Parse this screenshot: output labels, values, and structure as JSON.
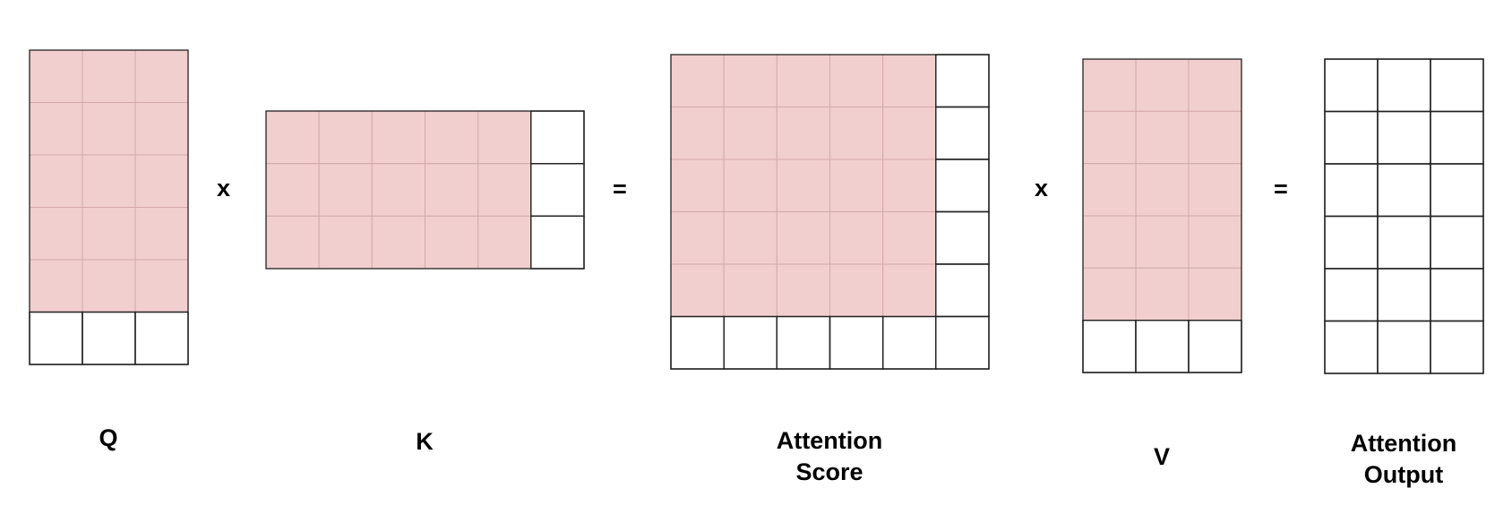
{
  "colors": {
    "shaded": "#f2cfcf",
    "inner_line": "#d2a9a9",
    "border": "#222222",
    "background": "#ffffff"
  },
  "matrices": [
    {
      "id": "q",
      "label": "Q",
      "rows": 6,
      "cols": 3,
      "shaded_rows": 5,
      "shaded_cols": 3
    },
    {
      "id": "k",
      "label": "K",
      "rows": 3,
      "cols": 6,
      "shaded_rows": 3,
      "shaded_cols": 5
    },
    {
      "id": "attention-score",
      "label": "Attention\nScore",
      "rows": 6,
      "cols": 6,
      "shaded_rows": 5,
      "shaded_cols": 5
    },
    {
      "id": "v",
      "label": "V",
      "rows": 6,
      "cols": 3,
      "shaded_rows": 5,
      "shaded_cols": 3
    },
    {
      "id": "attention-output",
      "label": "Attention\nOutput",
      "rows": 6,
      "cols": 3,
      "shaded_rows": 0,
      "shaded_cols": 0
    }
  ],
  "operators": [
    {
      "id": "multiply-1",
      "symbol": "x"
    },
    {
      "id": "equals-1",
      "symbol": "="
    },
    {
      "id": "multiply-2",
      "symbol": "x"
    },
    {
      "id": "equals-2",
      "symbol": "="
    }
  ]
}
